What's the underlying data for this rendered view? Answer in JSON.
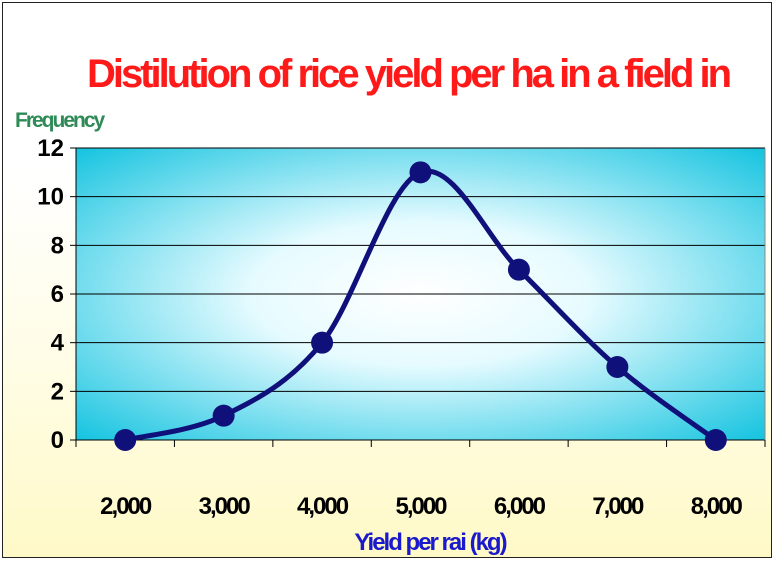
{
  "chart_data": {
    "type": "line",
    "title": "Distilution of rice yield per ha in a field in",
    "ylabel": "Frequency",
    "xlabel": "Yield per rai (kg)",
    "categories": [
      "2,000",
      "3,000",
      "4,000",
      "5,000",
      "6,000",
      "7,000",
      "8,000"
    ],
    "x": [
      2000,
      3000,
      4000,
      5000,
      6000,
      7000,
      8000
    ],
    "series": [
      {
        "values": [
          0,
          1,
          4,
          11,
          7,
          3,
          0
        ]
      }
    ],
    "ylim": [
      0,
      12
    ],
    "yticks": [
      0,
      2,
      4,
      6,
      8,
      10,
      12
    ],
    "ytick_labels": [
      "0",
      "2",
      "4",
      "6",
      "8",
      "10",
      "12"
    ],
    "smooth": true,
    "markers": true,
    "grid": true,
    "legend": "none",
    "colors": {
      "line": "#10107a",
      "marker": "#10107a",
      "plot_center": "#ffffff",
      "plot_edge": "#17c4e0",
      "title": "#ff1a1a",
      "ylabel": "#2e8b57",
      "xlabel": "#1a1acc"
    }
  }
}
